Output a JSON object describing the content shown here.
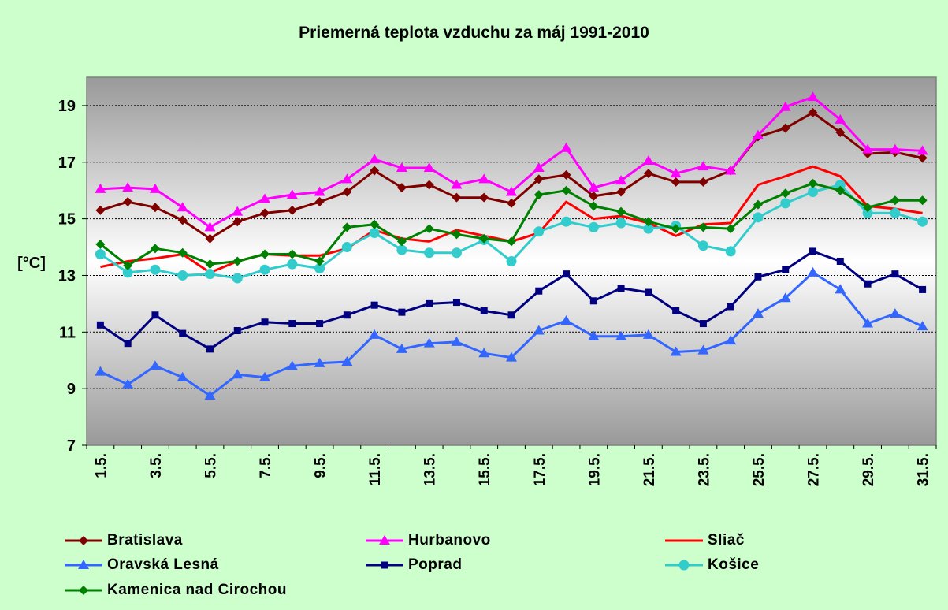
{
  "chart_data": {
    "type": "line",
    "title": "Priemerná teplota vzduchu za máj 1991-2010",
    "xlabel": "",
    "ylabel": "[°C]",
    "ylim": [
      7,
      20
    ],
    "yticks": [
      7,
      9,
      11,
      13,
      15,
      17,
      19
    ],
    "grid": true,
    "legend_position": "bottom",
    "categories": [
      "1.5.",
      "2.5.",
      "3.5.",
      "4.5.",
      "5.5.",
      "6.5.",
      "7.5.",
      "8.5.",
      "9.5.",
      "10.5.",
      "11.5.",
      "12.5.",
      "13.5.",
      "14.5.",
      "15.5.",
      "16.5.",
      "17.5.",
      "18.5.",
      "19.5.",
      "20.5.",
      "21.5.",
      "22.5.",
      "23.5.",
      "24.5.",
      "25.5.",
      "26.5.",
      "27.5.",
      "28.5.",
      "29.5.",
      "30.5.",
      "31.5."
    ],
    "tick_labels": [
      "1.5.",
      "3.5.",
      "5.5.",
      "7.5.",
      "9.5.",
      "11.5.",
      "13.5.",
      "15.5.",
      "17.5.",
      "19.5.",
      "21.5.",
      "23.5.",
      "25.5.",
      "27.5.",
      "29.5.",
      "31.5."
    ],
    "series": [
      {
        "name": "Bratislava",
        "color": "#800000",
        "marker": "diamond",
        "values": [
          15.3,
          15.6,
          15.4,
          14.95,
          14.3,
          14.9,
          15.2,
          15.3,
          15.6,
          15.95,
          16.7,
          16.1,
          16.2,
          15.75,
          15.75,
          15.55,
          16.4,
          16.55,
          15.8,
          15.95,
          16.6,
          16.3,
          16.3,
          16.7,
          17.9,
          18.2,
          18.75,
          18.05,
          17.3,
          17.35,
          17.15
        ]
      },
      {
        "name": "Hurbanovo",
        "color": "#ff00ff",
        "marker": "triangle",
        "values": [
          16.05,
          16.1,
          16.05,
          15.4,
          14.7,
          15.25,
          15.7,
          15.85,
          15.95,
          16.4,
          17.1,
          16.8,
          16.8,
          16.2,
          16.4,
          15.95,
          16.8,
          17.5,
          16.1,
          16.35,
          17.05,
          16.6,
          16.85,
          16.7,
          17.95,
          18.95,
          19.3,
          18.5,
          17.45,
          17.45,
          17.4
        ]
      },
      {
        "name": "Sliač",
        "color": "#ff0000",
        "marker": "none",
        "values": [
          13.3,
          13.5,
          13.6,
          13.75,
          13.1,
          13.5,
          13.75,
          13.7,
          13.7,
          13.95,
          14.6,
          14.3,
          14.2,
          14.6,
          14.4,
          14.2,
          14.5,
          15.6,
          15.0,
          15.1,
          14.85,
          14.4,
          14.8,
          14.85,
          16.2,
          16.5,
          16.85,
          16.5,
          15.45,
          15.35,
          15.2
        ]
      },
      {
        "name": "Oravská Lesná",
        "color": "#3366ff",
        "marker": "triangle",
        "values": [
          9.6,
          9.15,
          9.8,
          9.4,
          8.75,
          9.5,
          9.4,
          9.8,
          9.9,
          9.95,
          10.9,
          10.4,
          10.6,
          10.65,
          10.25,
          10.1,
          11.05,
          11.4,
          10.85,
          10.85,
          10.9,
          10.3,
          10.35,
          10.7,
          11.65,
          12.2,
          13.1,
          12.5,
          11.3,
          11.65,
          11.2
        ]
      },
      {
        "name": "Poprad",
        "color": "#000080",
        "marker": "square",
        "values": [
          11.25,
          10.6,
          11.6,
          10.95,
          10.4,
          11.05,
          11.35,
          11.3,
          11.3,
          11.6,
          11.95,
          11.7,
          12.0,
          12.05,
          11.75,
          11.6,
          12.45,
          13.05,
          12.1,
          12.55,
          12.4,
          11.75,
          11.3,
          11.9,
          12.95,
          13.2,
          13.85,
          13.5,
          12.7,
          13.05,
          12.5
        ]
      },
      {
        "name": "Košice",
        "color": "#33cccc",
        "marker": "circle",
        "values": [
          13.75,
          13.1,
          13.2,
          13.0,
          13.05,
          12.9,
          13.2,
          13.4,
          13.25,
          14.0,
          14.5,
          13.9,
          13.8,
          13.8,
          14.25,
          13.5,
          14.55,
          14.9,
          14.7,
          14.85,
          14.65,
          14.75,
          14.05,
          13.85,
          15.05,
          15.55,
          15.95,
          16.2,
          15.2,
          15.2,
          14.9
        ]
      },
      {
        "name": "Kamenica nad Cirochou",
        "color": "#008000",
        "marker": "diamond",
        "values": [
          14.1,
          13.35,
          13.95,
          13.8,
          13.4,
          13.5,
          13.75,
          13.75,
          13.5,
          14.7,
          14.8,
          14.2,
          14.65,
          14.45,
          14.3,
          14.2,
          15.85,
          16.0,
          15.45,
          15.25,
          14.9,
          14.65,
          14.7,
          14.65,
          15.5,
          15.9,
          16.25,
          16.0,
          15.4,
          15.65,
          15.65
        ]
      }
    ]
  }
}
